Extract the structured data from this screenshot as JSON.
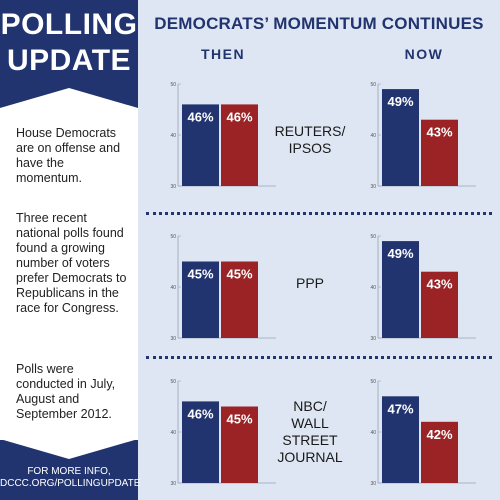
{
  "sidebar": {
    "title_line1": "POLLING",
    "title_line2": "UPDATE",
    "paragraph1": "House Democrats are on offense and have the momentum.",
    "paragraph2": "Three recent national polls found found a growing number of voters prefer Democrats to Republicans in the race for Congress.",
    "paragraph3": "Polls were conducted in July, August and September 2012.",
    "footer_line1": "FOR MORE INFO,",
    "footer_line2": "DCCC.ORG/POLLINGUPDATE"
  },
  "header": {
    "title": "DEMOCRATS’ MOMENTUM CONTINUES",
    "col_then": "THEN",
    "col_now": "NOW"
  },
  "polls": [
    {
      "name_lines": [
        "REUTERS/",
        "IPSOS"
      ]
    },
    {
      "name_lines": [
        "PPP"
      ]
    },
    {
      "name_lines": [
        "NBC/",
        "WALL",
        "STREET",
        "JOURNAL"
      ]
    }
  ],
  "colors": {
    "democrat": "#223470",
    "republican": "#9b2326",
    "navy": "#223470",
    "background": "#dde6f2"
  },
  "chart_data": [
    {
      "type": "bar",
      "poll": "REUTERS/IPSOS",
      "period": "THEN",
      "categories": [
        "Democrats",
        "Republicans"
      ],
      "values": [
        46,
        46
      ],
      "labels": [
        "46%",
        "46%"
      ],
      "ylim": [
        30,
        50
      ],
      "yticks": [
        30,
        40,
        50
      ],
      "title": "",
      "xlabel": "",
      "ylabel": ""
    },
    {
      "type": "bar",
      "poll": "REUTERS/IPSOS",
      "period": "NOW",
      "categories": [
        "Democrats",
        "Republicans"
      ],
      "values": [
        49,
        43
      ],
      "labels": [
        "49%",
        "43%"
      ],
      "ylim": [
        30,
        50
      ],
      "yticks": [
        30,
        40,
        50
      ],
      "title": "",
      "xlabel": "",
      "ylabel": ""
    },
    {
      "type": "bar",
      "poll": "PPP",
      "period": "THEN",
      "categories": [
        "Democrats",
        "Republicans"
      ],
      "values": [
        45,
        45
      ],
      "labels": [
        "45%",
        "45%"
      ],
      "ylim": [
        30,
        50
      ],
      "yticks": [
        30,
        40,
        50
      ],
      "title": "",
      "xlabel": "",
      "ylabel": ""
    },
    {
      "type": "bar",
      "poll": "PPP",
      "period": "NOW",
      "categories": [
        "Democrats",
        "Republicans"
      ],
      "values": [
        49,
        43
      ],
      "labels": [
        "49%",
        "43%"
      ],
      "ylim": [
        30,
        50
      ],
      "yticks": [
        30,
        40,
        50
      ],
      "title": "",
      "xlabel": "",
      "ylabel": ""
    },
    {
      "type": "bar",
      "poll": "NBC/WALL STREET JOURNAL",
      "period": "THEN",
      "categories": [
        "Democrats",
        "Republicans"
      ],
      "values": [
        46,
        45
      ],
      "labels": [
        "46%",
        "45%"
      ],
      "ylim": [
        30,
        50
      ],
      "yticks": [
        30,
        40,
        50
      ],
      "title": "",
      "xlabel": "",
      "ylabel": ""
    },
    {
      "type": "bar",
      "poll": "NBC/WALL STREET JOURNAL",
      "period": "NOW",
      "categories": [
        "Democrats",
        "Republicans"
      ],
      "values": [
        47,
        42
      ],
      "labels": [
        "47%",
        "42%"
      ],
      "ylim": [
        30,
        50
      ],
      "yticks": [
        30,
        40,
        50
      ],
      "title": "",
      "xlabel": "",
      "ylabel": ""
    }
  ]
}
